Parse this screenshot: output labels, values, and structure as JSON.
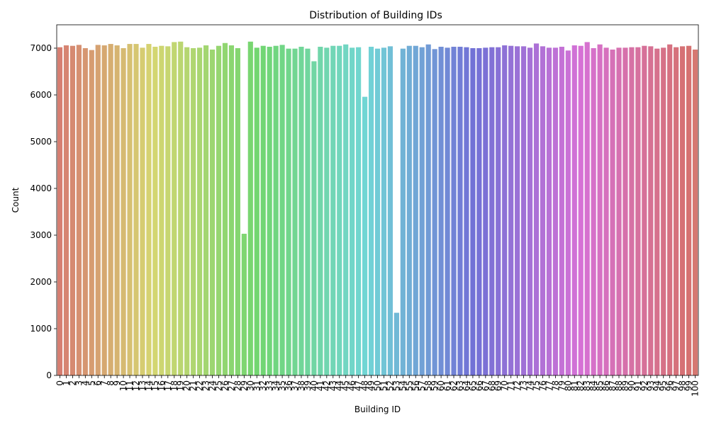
{
  "chart_data": {
    "type": "bar",
    "title": "Distribution of Building IDs",
    "xlabel": "Building ID",
    "ylabel": "Count",
    "ylim": [
      0,
      7500
    ],
    "yticks": [
      0,
      1000,
      2000,
      3000,
      4000,
      5000,
      6000,
      7000
    ],
    "grid": false,
    "legend": "none",
    "palette": "husl-rainbow",
    "categories": [
      "0",
      "1",
      "2",
      "3",
      "4",
      "5",
      "6",
      "7",
      "8",
      "9",
      "10",
      "11",
      "12",
      "13",
      "14",
      "15",
      "16",
      "17",
      "18",
      "19",
      "20",
      "21",
      "22",
      "23",
      "24",
      "25",
      "26",
      "27",
      "28",
      "29",
      "30",
      "31",
      "32",
      "33",
      "34",
      "35",
      "36",
      "37",
      "38",
      "39",
      "40",
      "41",
      "42",
      "43",
      "44",
      "45",
      "46",
      "47",
      "48",
      "49",
      "50",
      "51",
      "52",
      "53",
      "54",
      "55",
      "56",
      "57",
      "58",
      "59",
      "60",
      "61",
      "62",
      "63",
      "64",
      "65",
      "66",
      "67",
      "68",
      "69",
      "70",
      "71",
      "72",
      "73",
      "74",
      "75",
      "76",
      "77",
      "78",
      "79",
      "80",
      "81",
      "82",
      "83",
      "84",
      "85",
      "86",
      "87",
      "88",
      "89",
      "90",
      "91",
      "92",
      "93",
      "94",
      "95",
      "96",
      "97",
      "98",
      "99",
      "100"
    ],
    "values": [
      7020,
      7060,
      7050,
      7070,
      7000,
      6960,
      7070,
      7060,
      7090,
      7060,
      7000,
      7090,
      7090,
      7010,
      7090,
      7030,
      7050,
      7040,
      7130,
      7140,
      7020,
      7000,
      7010,
      7060,
      6970,
      7050,
      7110,
      7060,
      7000,
      3030,
      7140,
      7010,
      7050,
      7030,
      7050,
      7070,
      6990,
      6990,
      7030,
      6990,
      6720,
      7030,
      7010,
      7050,
      7050,
      7080,
      7010,
      7020,
      5960,
      7030,
      6990,
      7010,
      7040,
      1340,
      6990,
      7050,
      7050,
      7020,
      7080,
      6980,
      7030,
      7010,
      7030,
      7030,
      7020,
      7000,
      7000,
      7010,
      7020,
      7020,
      7060,
      7050,
      7040,
      7040,
      7010,
      7100,
      7040,
      7010,
      7010,
      7030,
      6950,
      7060,
      7050,
      7130,
      7000,
      7080,
      7010,
      6970,
      7010,
      7010,
      7020,
      7020,
      7050,
      7040,
      6990,
      7010,
      7080,
      7020,
      7040,
      7050,
      6970
    ]
  }
}
